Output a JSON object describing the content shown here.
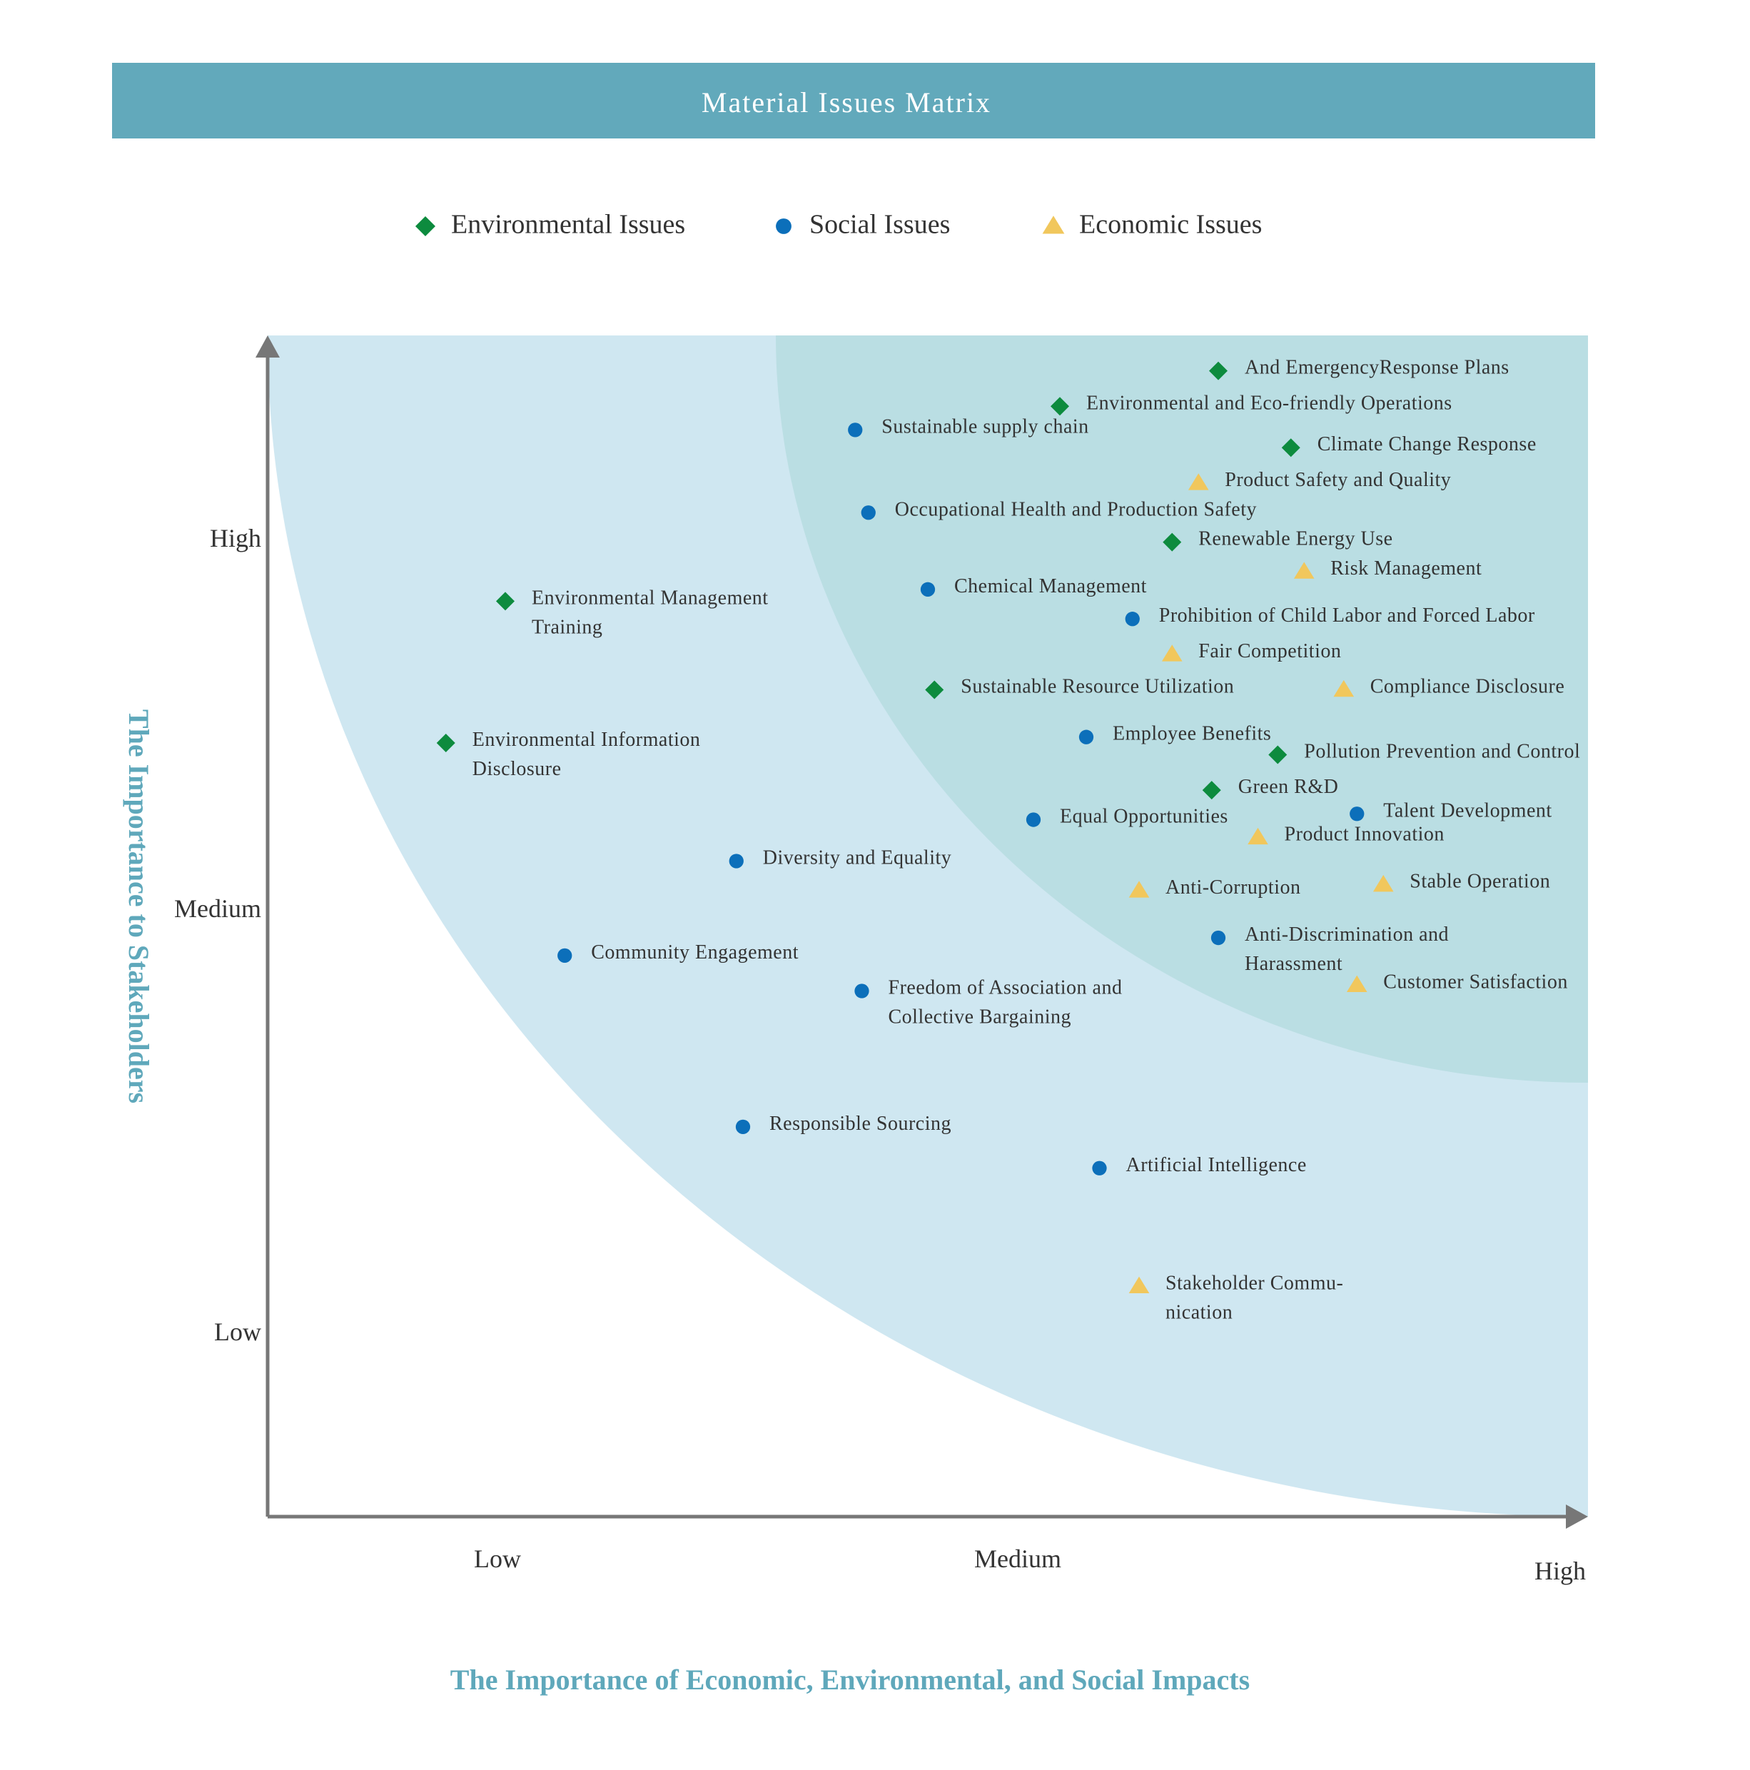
{
  "chart_data": {
    "type": "scatter",
    "title": "Material Issues Matrix",
    "xlabel": "The Importance of Economic, Environmental, and Social Impacts",
    "ylabel": "The Importance to Stakeholders",
    "x_ticks": [
      "Low",
      "Medium",
      "High"
    ],
    "y_ticks": [
      "High",
      "Medium",
      "Low"
    ],
    "xlim": [
      0,
      10
    ],
    "ylim": [
      0,
      10
    ],
    "legend_position": "top",
    "colors": {
      "title_bar": "#62a9bb",
      "outer_zone": "#cfe7f1",
      "inner_zone": "#badee3",
      "axis": "#777777",
      "axis_title": "#5fa8bb"
    },
    "series": [
      {
        "name": "Environmental Issues",
        "marker": "diamond",
        "color": "#0d8b3e",
        "points": [
          {
            "label": "And EmergencyResponse Plans",
            "x": 7.2,
            "y": 9.7
          },
          {
            "label": "Environmental and Eco-friendly Operations",
            "x": 6.0,
            "y": 9.4
          },
          {
            "label": "Climate Change Response",
            "x": 7.75,
            "y": 9.05
          },
          {
            "label": "Renewable Energy Use",
            "x": 6.85,
            "y": 8.25
          },
          {
            "label": "Environmental Management Training",
            "x": 1.8,
            "y": 7.75
          },
          {
            "label": "Sustainable Resource Utilization",
            "x": 5.05,
            "y": 7.0
          },
          {
            "label": "Environmental Information Disclosure",
            "x": 1.35,
            "y": 6.55
          },
          {
            "label": "Pollution Prevention and Control",
            "x": 7.65,
            "y": 6.45
          },
          {
            "label": "Green R&D",
            "x": 7.15,
            "y": 6.15
          }
        ]
      },
      {
        "name": "Social Issues",
        "marker": "circle",
        "color": "#0c6fba",
        "points": [
          {
            "label": "Sustainable supply chain",
            "x": 4.45,
            "y": 9.2
          },
          {
            "label": "Occupational Health and Production Safety",
            "x": 4.55,
            "y": 8.5
          },
          {
            "label": "Chemical Management",
            "x": 5.0,
            "y": 7.85
          },
          {
            "label": "Prohibition of Child Labor and Forced Labor",
            "x": 6.55,
            "y": 7.6
          },
          {
            "label": "Employee Benefits",
            "x": 6.2,
            "y": 6.6
          },
          {
            "label": "Equal Opportunities",
            "x": 5.8,
            "y": 5.9
          },
          {
            "label": "Talent Development",
            "x": 8.25,
            "y": 5.95
          },
          {
            "label": "Diversity and Equality",
            "x": 3.55,
            "y": 5.55
          },
          {
            "label": "Anti-Discrimination and Harassment",
            "x": 7.2,
            "y": 4.9
          },
          {
            "label": "Community Engagement",
            "x": 2.25,
            "y": 4.75
          },
          {
            "label": "Freedom of Association and Collective Bargaining",
            "x": 4.5,
            "y": 4.45
          },
          {
            "label": "Responsible Sourcing",
            "x": 3.6,
            "y": 3.3
          },
          {
            "label": "Artificial Intelligence",
            "x": 6.3,
            "y": 2.95
          }
        ]
      },
      {
        "name": "Economic Issues",
        "marker": "triangle",
        "color": "#f1c75c",
        "points": [
          {
            "label": "Product Safety and Quality",
            "x": 7.05,
            "y": 8.75
          },
          {
            "label": "Risk Management",
            "x": 7.85,
            "y": 8.0
          },
          {
            "label": "Fair Competition",
            "x": 6.85,
            "y": 7.3
          },
          {
            "label": "Compliance Disclosure",
            "x": 8.15,
            "y": 7.0
          },
          {
            "label": "Product Innovation",
            "x": 7.5,
            "y": 5.75
          },
          {
            "label": "Anti-Corruption",
            "x": 6.6,
            "y": 5.3
          },
          {
            "label": "Stable Operation",
            "x": 8.45,
            "y": 5.35
          },
          {
            "label": "Customer Satisfaction",
            "x": 8.25,
            "y": 4.5
          },
          {
            "label": "Stakeholder Communication",
            "x": 6.6,
            "y": 1.95
          }
        ]
      }
    ]
  }
}
